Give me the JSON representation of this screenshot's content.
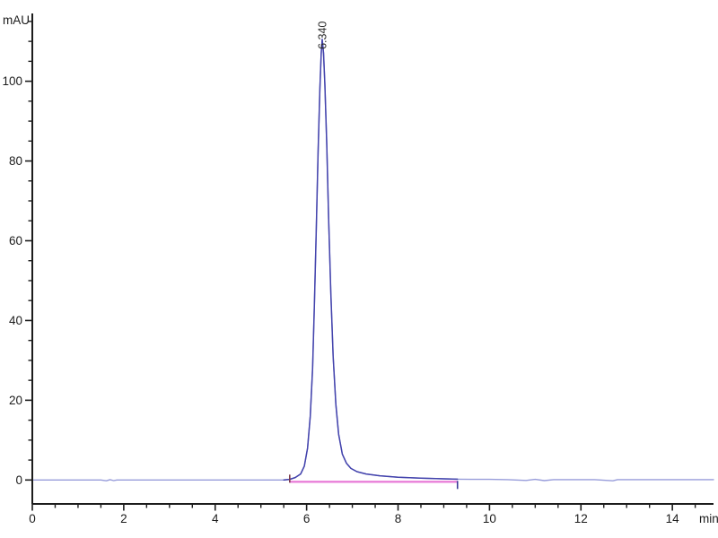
{
  "page": {
    "background": "#ffffff"
  },
  "chart_data": {
    "type": "line",
    "title": "",
    "ylabel": "mAU",
    "xlabel": "min",
    "xlim": [
      0,
      14.9
    ],
    "ylim": [
      -6,
      117
    ],
    "x_ticks_major": [
      0,
      2,
      4,
      6,
      8,
      10,
      12,
      14
    ],
    "x_minor_step": 0.5,
    "y_ticks_major": [
      0,
      20,
      40,
      60,
      80,
      100
    ],
    "y_minor_step": 5,
    "grid": false,
    "legend": null,
    "axis_color": "#1c1c1c",
    "tick_label_color": "#1c1c1c",
    "peak_annotation": {
      "label": "6.340",
      "retention_time_min": 6.34,
      "apex_mAU": 110.5,
      "label_color": "#2a2a2a"
    },
    "integration": {
      "start_min": 5.63,
      "end_min": 9.3,
      "baseline_mAU": -0.45,
      "line_color": "#e87fd8",
      "start_marker_color": "#7a3b4d",
      "end_marker_color": "#3a3a99"
    },
    "series": [
      {
        "name": "signal",
        "color": "#979cda",
        "width": 1.4,
        "points": [
          [
            0,
            0
          ],
          [
            0.8,
            0
          ],
          [
            1.5,
            0
          ],
          [
            1.62,
            -0.2
          ],
          [
            1.7,
            0.1
          ],
          [
            1.78,
            -0.15
          ],
          [
            1.85,
            0
          ],
          [
            2.5,
            0
          ],
          [
            3.5,
            0
          ],
          [
            4.5,
            0
          ],
          [
            5.3,
            0
          ],
          [
            5.5,
            0
          ],
          [
            5.63,
            0.15
          ],
          [
            5.75,
            0.6
          ],
          [
            5.87,
            1.5
          ],
          [
            5.95,
            3.5
          ],
          [
            6.02,
            8
          ],
          [
            6.08,
            16
          ],
          [
            6.13,
            28
          ],
          [
            6.17,
            44
          ],
          [
            6.21,
            62
          ],
          [
            6.25,
            82
          ],
          [
            6.29,
            98
          ],
          [
            6.32,
            107
          ],
          [
            6.34,
            110.5
          ],
          [
            6.37,
            107
          ],
          [
            6.4,
            99
          ],
          [
            6.44,
            84
          ],
          [
            6.48,
            66
          ],
          [
            6.53,
            47
          ],
          [
            6.58,
            31
          ],
          [
            6.64,
            19
          ],
          [
            6.7,
            11.5
          ],
          [
            6.78,
            6.5
          ],
          [
            6.87,
            4.2
          ],
          [
            6.97,
            2.9
          ],
          [
            7.1,
            2.1
          ],
          [
            7.3,
            1.5
          ],
          [
            7.6,
            1.05
          ],
          [
            8.0,
            0.7
          ],
          [
            8.5,
            0.45
          ],
          [
            9.0,
            0.3
          ],
          [
            9.3,
            0.2
          ],
          [
            9.6,
            0.15
          ],
          [
            10.0,
            0.15
          ],
          [
            10.4,
            0.1
          ],
          [
            10.8,
            -0.1
          ],
          [
            11.0,
            0.15
          ],
          [
            11.2,
            -0.15
          ],
          [
            11.4,
            0.1
          ],
          [
            11.8,
            0.1
          ],
          [
            12.3,
            0.1
          ],
          [
            12.7,
            -0.2
          ],
          [
            12.8,
            0.1
          ],
          [
            13.4,
            0.1
          ],
          [
            14.1,
            0.1
          ],
          [
            14.9,
            0.1
          ]
        ]
      },
      {
        "name": "signal-peak",
        "color": "#4343ac",
        "width": 1.5,
        "points": [
          [
            5.5,
            0
          ],
          [
            5.63,
            0.15
          ],
          [
            5.75,
            0.6
          ],
          [
            5.87,
            1.5
          ],
          [
            5.95,
            3.5
          ],
          [
            6.02,
            8
          ],
          [
            6.08,
            16
          ],
          [
            6.13,
            28
          ],
          [
            6.17,
            44
          ],
          [
            6.21,
            62
          ],
          [
            6.25,
            82
          ],
          [
            6.29,
            98
          ],
          [
            6.32,
            107
          ],
          [
            6.34,
            110.5
          ],
          [
            6.37,
            107
          ],
          [
            6.4,
            99
          ],
          [
            6.44,
            84
          ],
          [
            6.48,
            66
          ],
          [
            6.53,
            47
          ],
          [
            6.58,
            31
          ],
          [
            6.64,
            19
          ],
          [
            6.7,
            11.5
          ],
          [
            6.78,
            6.5
          ],
          [
            6.87,
            4.2
          ],
          [
            6.97,
            2.9
          ],
          [
            7.1,
            2.1
          ],
          [
            7.3,
            1.5
          ],
          [
            7.6,
            1.05
          ],
          [
            8.0,
            0.7
          ],
          [
            8.5,
            0.45
          ],
          [
            9.0,
            0.3
          ],
          [
            9.3,
            0.2
          ]
        ]
      }
    ]
  }
}
